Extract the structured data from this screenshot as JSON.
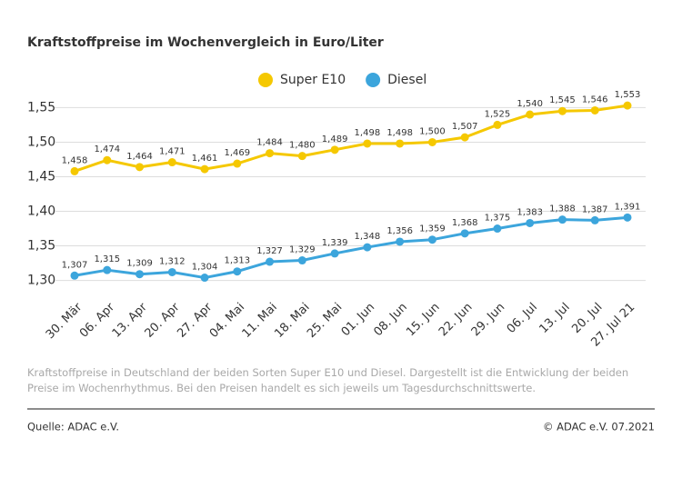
{
  "chart_data": {
    "type": "line",
    "title": "Kraftstoffpreise im Wochenvergleich in Euro/Liter",
    "categories": [
      "30. Mär",
      "06. Apr",
      "13. Apr",
      "20. Apr",
      "27. Apr",
      "04. Mai",
      "11. Mai",
      "18. Mai",
      "25. Mai",
      "01. Jun",
      "08. Jun",
      "15. Jun",
      "22. Jun",
      "29. Jun",
      "06. Jul",
      "13. Jul",
      "20. Jul",
      "27. Jul 21"
    ],
    "series": [
      {
        "name": "Super E10",
        "color": "#f5c800",
        "values": [
          1.458,
          1.474,
          1.464,
          1.471,
          1.461,
          1.469,
          1.484,
          1.48,
          1.489,
          1.498,
          1.498,
          1.5,
          1.507,
          1.525,
          1.54,
          1.545,
          1.546,
          1.553
        ],
        "value_labels": [
          "1,458",
          "1,474",
          "1,464",
          "1,471",
          "1,461",
          "1,469",
          "1,484",
          "1,480",
          "1,489",
          "1,498",
          "1,498",
          "1,500",
          "1,507",
          "1,525",
          "1,540",
          "1,545",
          "1,546",
          "1,553"
        ]
      },
      {
        "name": "Diesel",
        "color": "#3ca5dc",
        "values": [
          1.307,
          1.315,
          1.309,
          1.312,
          1.304,
          1.313,
          1.327,
          1.329,
          1.339,
          1.348,
          1.356,
          1.359,
          1.368,
          1.375,
          1.383,
          1.388,
          1.387,
          1.391
        ],
        "value_labels": [
          "1,307",
          "1,315",
          "1,309",
          "1,312",
          "1,304",
          "1,313",
          "1,327",
          "1,329",
          "1,339",
          "1,348",
          "1,356",
          "1,359",
          "1,368",
          "1,375",
          "1,383",
          "1,388",
          "1,387",
          "1,391"
        ]
      }
    ],
    "ylim": [
      1.285,
      1.565
    ],
    "yticks": [
      {
        "value": 1.3,
        "label": "1,30"
      },
      {
        "value": 1.35,
        "label": "1,35"
      },
      {
        "value": 1.4,
        "label": "1,40"
      },
      {
        "value": 1.45,
        "label": "1,45"
      },
      {
        "value": 1.5,
        "label": "1,50"
      },
      {
        "value": 1.55,
        "label": "1,55"
      }
    ],
    "grid": true,
    "description": "Kraftstoffpreise in Deutschland der beiden Sorten Super E10 und Diesel. Dargestellt ist die Entwicklung der beiden Preise im Wochenrhythmus. Bei den Preisen handelt es sich jeweils um Tagesdurchschnittswerte.",
    "source": "Quelle: ADAC e.V.",
    "copyright": "© ADAC e.V. 07.2021"
  }
}
